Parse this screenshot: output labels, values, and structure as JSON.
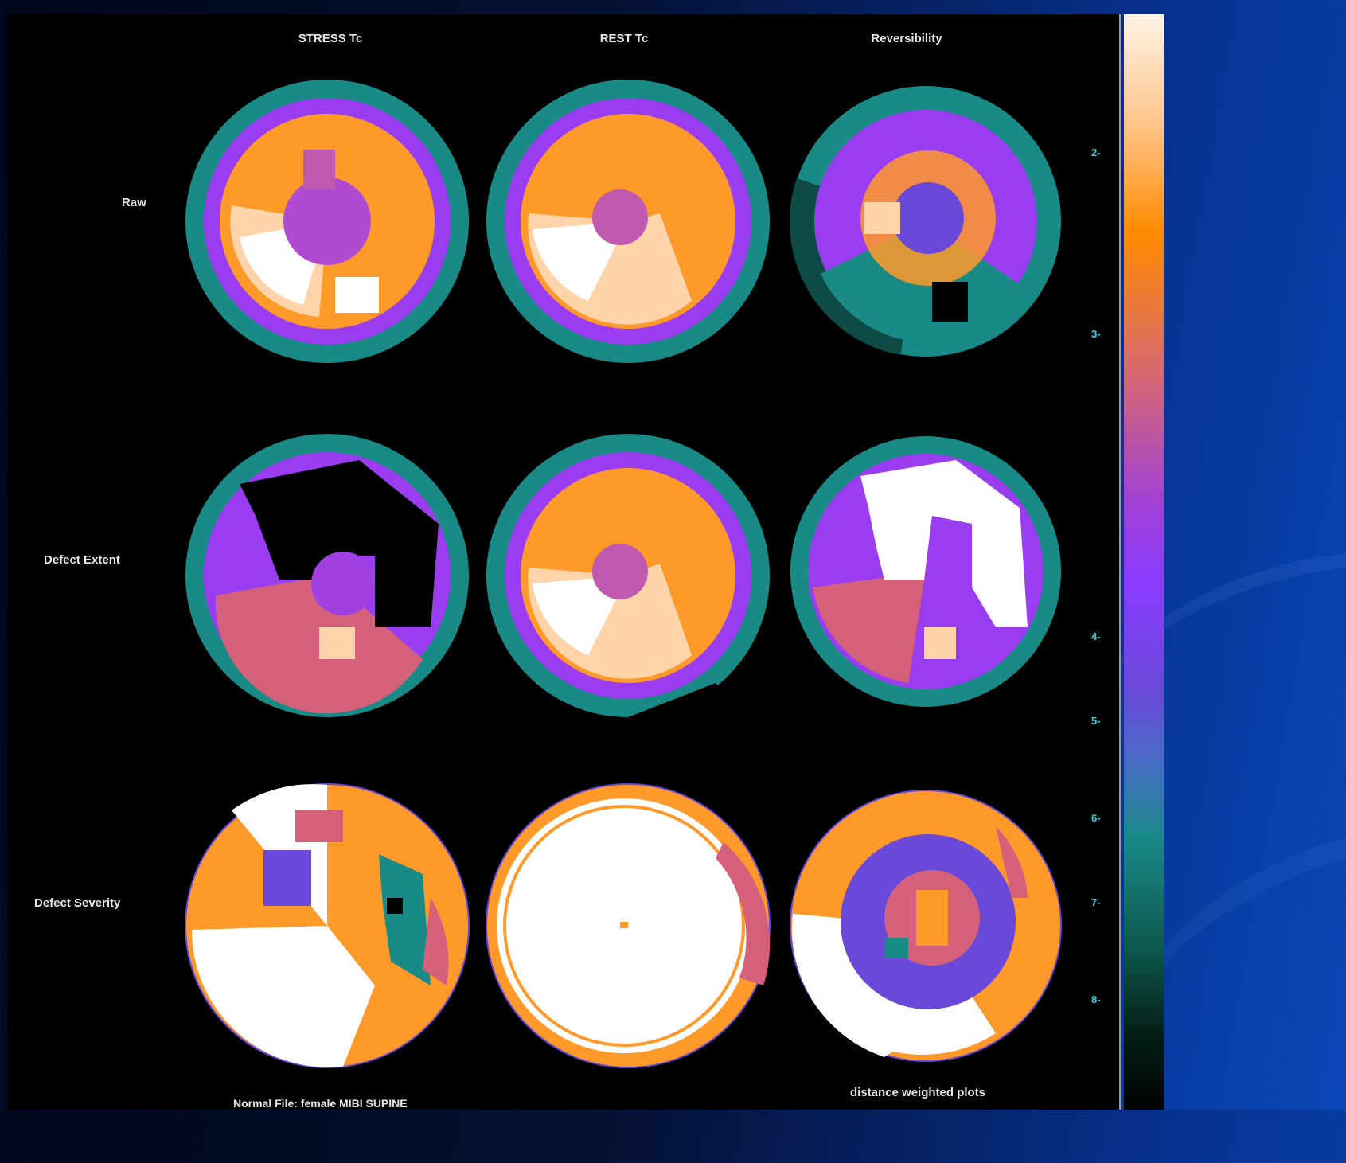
{
  "columns": [
    "STRESS Tc",
    "REST Tc",
    "Reversibility"
  ],
  "rows": [
    "Raw",
    "Defect Extent",
    "Defect Severity"
  ],
  "scale_ticks": [
    "2-",
    "3-",
    "4-",
    "5-",
    "6-",
    "7-",
    "8-"
  ],
  "footer": {
    "normal_file": "Normal File:  female MIBI SUPINE",
    "plot_type": "distance weighted plots"
  },
  "colors": {
    "white": "#ffffff",
    "peach": "#ffd4a8",
    "orange": "#ff9a2a",
    "rose": "#d4607a",
    "purple": "#9a3cf0",
    "blue_violet": "#6a48d8",
    "teal": "#1a8a86",
    "dark_teal": "#0e4a46",
    "black": "#000000"
  }
}
